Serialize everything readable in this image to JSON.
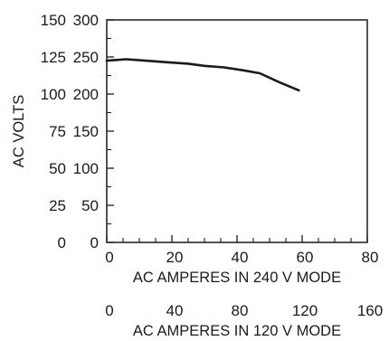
{
  "chart_data": {
    "type": "line",
    "ylabel": "AC VOLTS",
    "xlabel": "AC AMPERES IN 240 V MODE",
    "xlabel_secondary": "AC AMPERES IN 120 V MODE",
    "x_ticks": [
      "0",
      "20",
      "40",
      "60",
      "80"
    ],
    "x_ticks_secondary": [
      "0",
      "40",
      "80",
      "120",
      "160"
    ],
    "y_ticks_left": [
      "0",
      "25",
      "50",
      "75",
      "100",
      "125",
      "150"
    ],
    "y_ticks_right": [
      "0",
      "50",
      "100",
      "150",
      "200",
      "250",
      "300"
    ],
    "xlim": [
      0,
      80
    ],
    "xlim_secondary": [
      0,
      160
    ],
    "ylim_left": [
      0,
      150
    ],
    "ylim_right": [
      0,
      300
    ],
    "grid": false,
    "series": [
      {
        "x": [
          0,
          6,
          12,
          18,
          25,
          30,
          36,
          42,
          47,
          53,
          59
        ],
        "y_240v": [
          245,
          247,
          245,
          243,
          241,
          238,
          236,
          232,
          228,
          216,
          205
        ],
        "color": "#1a1a1a"
      }
    ]
  }
}
